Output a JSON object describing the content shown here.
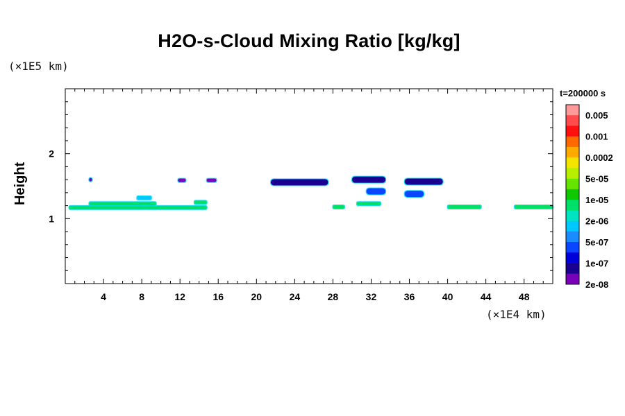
{
  "chart_data": {
    "type": "heatmap",
    "title": "H2O-s-Cloud Mixing Ratio [kg/kg]",
    "xlabel": "",
    "ylabel": "Height",
    "x_unit": "(×1E4 km)",
    "y_unit": "(×1E5 km)",
    "time_label": "t=200000 s",
    "xlim": [
      0,
      51
    ],
    "ylim": [
      0,
      3
    ],
    "x_ticks": [
      4,
      8,
      12,
      16,
      20,
      24,
      28,
      32,
      36,
      40,
      44,
      48
    ],
    "y_ticks": [
      1,
      2
    ],
    "colorbar": {
      "labels": [
        "0.005",
        "0.001",
        "0.0002",
        "5e-05",
        "1e-05",
        "2e-06",
        "5e-07",
        "1e-07",
        "2e-08"
      ],
      "colors": [
        "#ff9a9a",
        "#ff4b4b",
        "#ff1010",
        "#ff6a00",
        "#ffaa00",
        "#f2e600",
        "#b8ef00",
        "#66e400",
        "#10c800",
        "#00e068",
        "#00e4c0",
        "#00c8ff",
        "#1a8cff",
        "#0a45ff",
        "#0000d8",
        "#1a0090",
        "#7800b8"
      ]
    },
    "cloud_regions": [
      {
        "x_start": 0.4,
        "x_end": 14.8,
        "y": 1.17,
        "value": "1e-05"
      },
      {
        "x_start": 2.5,
        "x_end": 9.5,
        "y": 1.23,
        "value": "1e-05"
      },
      {
        "x_start": 7.5,
        "x_end": 9.0,
        "y": 1.32,
        "value": "2e-06"
      },
      {
        "x_start": 13.5,
        "x_end": 14.8,
        "y": 1.25,
        "value": "1e-05"
      },
      {
        "x_start": 2.5,
        "x_end": 2.8,
        "y": 1.6,
        "value": "2e-08"
      },
      {
        "x_start": 11.8,
        "x_end": 12.6,
        "y": 1.59,
        "value": "2e-08"
      },
      {
        "x_start": 14.8,
        "x_end": 15.8,
        "y": 1.59,
        "value": "2e-08"
      },
      {
        "x_start": 21.5,
        "x_end": 27.5,
        "y": 1.56,
        "value": "1e-07"
      },
      {
        "x_start": 30.0,
        "x_end": 33.5,
        "y": 1.6,
        "value": "1e-07"
      },
      {
        "x_start": 31.5,
        "x_end": 33.5,
        "y": 1.42,
        "value": "5e-07"
      },
      {
        "x_start": 35.5,
        "x_end": 39.5,
        "y": 1.57,
        "value": "1e-07"
      },
      {
        "x_start": 35.5,
        "x_end": 37.5,
        "y": 1.38,
        "value": "5e-07"
      },
      {
        "x_start": 28.0,
        "x_end": 29.2,
        "y": 1.18,
        "value": "1e-05"
      },
      {
        "x_start": 30.5,
        "x_end": 33.0,
        "y": 1.23,
        "value": "1e-05"
      },
      {
        "x_start": 40.0,
        "x_end": 43.5,
        "y": 1.18,
        "value": "1e-05"
      },
      {
        "x_start": 47.0,
        "x_end": 51.0,
        "y": 1.18,
        "value": "1e-05"
      }
    ]
  }
}
